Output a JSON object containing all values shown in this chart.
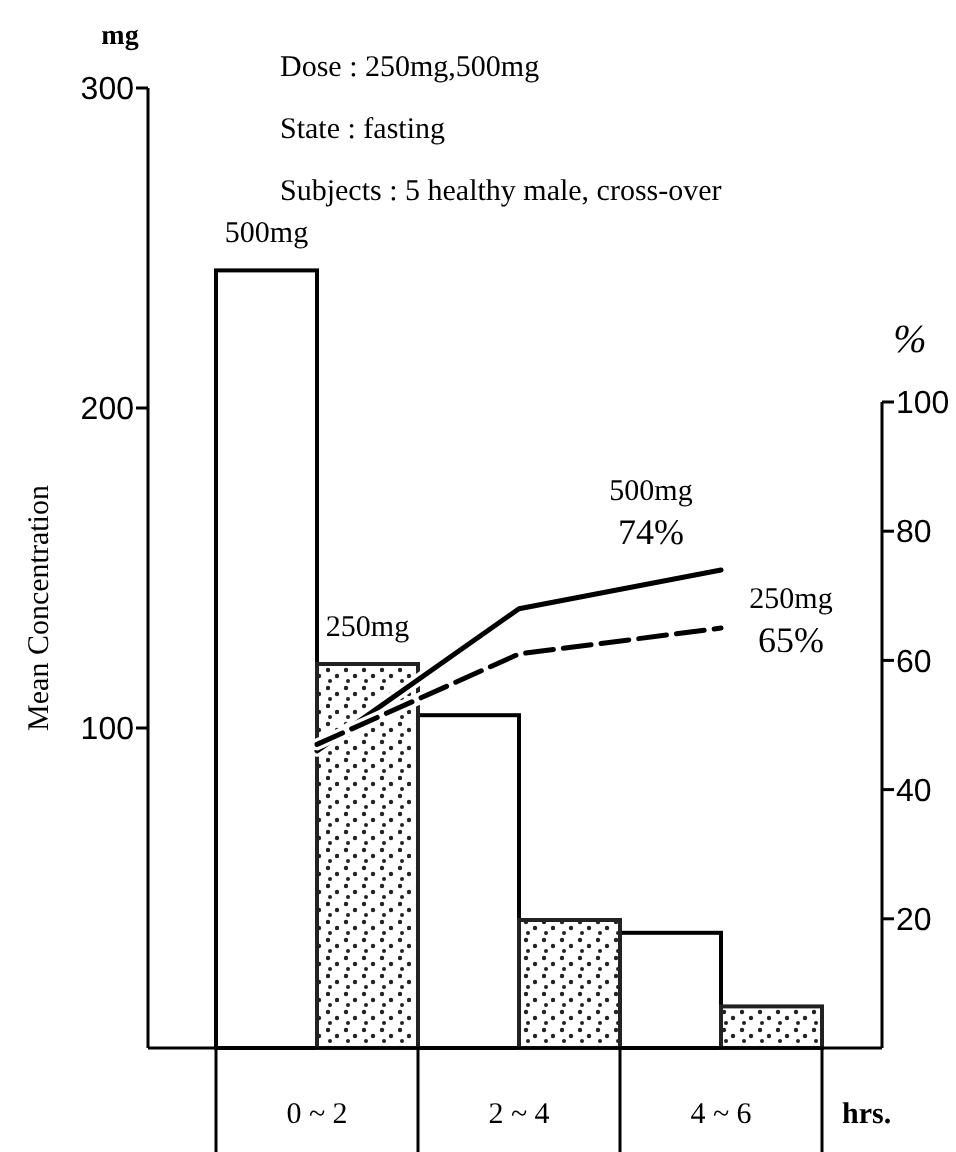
{
  "chart_data": {
    "type": "bar",
    "ylabel": "Mean Concentration",
    "y2label": "%",
    "xlabel": "hrs.",
    "annotations": [
      "mg",
      "Dose : 250mg,500mg",
      "State : fasting",
      "Subjects : 5 healthy male, cross-over"
    ],
    "categories": [
      "0 ~ 2",
      "2 ~ 4",
      "4 ~ 6"
    ],
    "ylim": [
      0,
      300
    ],
    "yticks": [
      100,
      200,
      300
    ],
    "y2lim": [
      0,
      100
    ],
    "y2ticks": [
      20,
      40,
      60,
      80,
      100
    ],
    "series": [
      {
        "name": "500mg",
        "color": "#ffffff",
        "values": [
          243,
          104,
          36
        ]
      },
      {
        "name": "250mg",
        "color": "#222222",
        "values": [
          120,
          40,
          13
        ]
      },
      {
        "name": "500mg",
        "type": "line",
        "axis": "y2",
        "line_style": "solid",
        "color": "#000000",
        "values": [
          46,
          68,
          74
        ],
        "value_labels": [
          null,
          null,
          "74%"
        ]
      },
      {
        "name": "250mg",
        "type": "line",
        "axis": "y2",
        "line_style": "dashed",
        "color": "#000000",
        "values": [
          47,
          61,
          65
        ],
        "value_labels": [
          null,
          null,
          "65%"
        ]
      }
    ]
  }
}
